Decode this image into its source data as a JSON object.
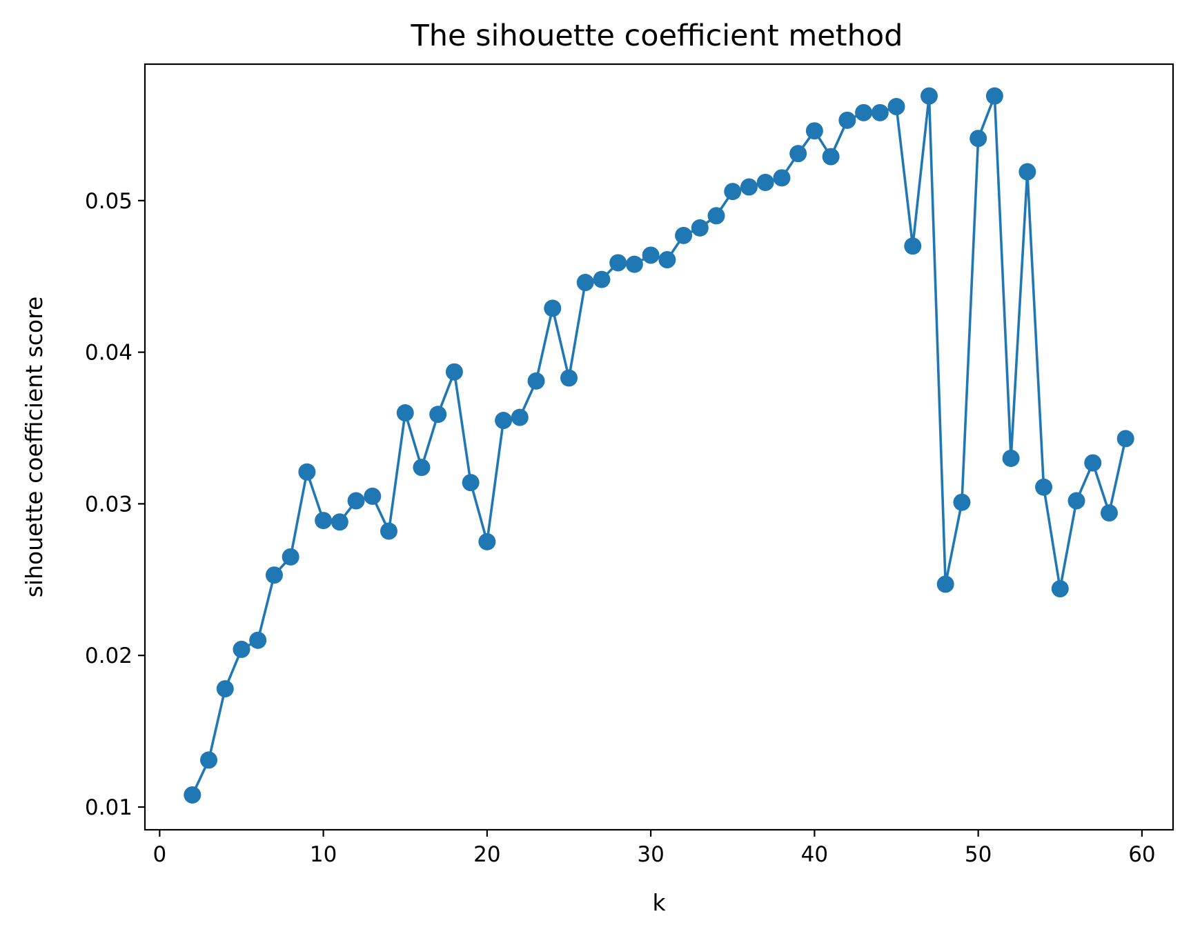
{
  "chart_data": {
    "type": "line",
    "title": "The sihouette coefficient method",
    "xlabel": "k",
    "ylabel": "sihouette coefficient score",
    "xlim": [
      -0.9,
      61.9
    ],
    "ylim": [
      0.0085,
      0.059
    ],
    "xticks": [
      0,
      10,
      20,
      30,
      40,
      50,
      60
    ],
    "xtick_labels": [
      "0",
      "10",
      "20",
      "30",
      "40",
      "50",
      "60"
    ],
    "yticks": [
      0.01,
      0.02,
      0.03,
      0.04,
      0.05
    ],
    "ytick_labels": [
      "0.01",
      "0.02",
      "0.03",
      "0.04",
      "0.05"
    ],
    "grid": false,
    "legend": false,
    "marker": "circle",
    "color": "#1f77b4",
    "series": [
      {
        "x": [
          2,
          3,
          4,
          5,
          6,
          7,
          8,
          9,
          10,
          11,
          12,
          13,
          14,
          15,
          16,
          17,
          18,
          19,
          20,
          21,
          22,
          23,
          24,
          25,
          26,
          27,
          28,
          29,
          30,
          31,
          32,
          33,
          34,
          35,
          36,
          37,
          38,
          39,
          40,
          41,
          42,
          43,
          44,
          45,
          46,
          47,
          48,
          49,
          50,
          51,
          52,
          53,
          54,
          55,
          56,
          57,
          58,
          59
        ],
        "y": [
          0.0108,
          0.0131,
          0.0178,
          0.0204,
          0.021,
          0.0253,
          0.0265,
          0.0321,
          0.0289,
          0.0288,
          0.0302,
          0.0305,
          0.0282,
          0.036,
          0.0324,
          0.0359,
          0.0387,
          0.0314,
          0.0275,
          0.0355,
          0.0357,
          0.0381,
          0.0429,
          0.0383,
          0.0446,
          0.0448,
          0.0459,
          0.0458,
          0.0464,
          0.0461,
          0.0477,
          0.0482,
          0.049,
          0.0506,
          0.0509,
          0.0512,
          0.0515,
          0.0531,
          0.0546,
          0.0529,
          0.0553,
          0.0558,
          0.0558,
          0.0562,
          0.047,
          0.0569,
          0.0247,
          0.0301,
          0.0541,
          0.0569,
          0.033,
          0.0519,
          0.0311,
          0.0244,
          0.0302,
          0.0327,
          0.0294,
          0.0343
        ]
      }
    ]
  }
}
